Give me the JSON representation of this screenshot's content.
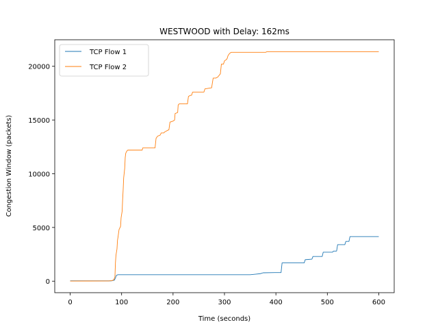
{
  "chart_data": {
    "type": "line",
    "title": "WESTWOOD with Delay: 162ms",
    "xlabel": "Time (seconds)",
    "ylabel": "Congestion Window (packets)",
    "xlim": [
      -30,
      630
    ],
    "ylim": [
      -1070,
      22470
    ],
    "xticks": [
      0,
      100,
      200,
      300,
      400,
      500,
      600
    ],
    "yticks": [
      0,
      5000,
      10000,
      15000,
      20000
    ],
    "grid": false,
    "legend_position": "upper-left",
    "series": [
      {
        "name": "TCP Flow 1",
        "color": "#1f77b4",
        "points": [
          [
            0,
            30
          ],
          [
            80,
            30
          ],
          [
            86,
            100
          ],
          [
            88,
            300
          ],
          [
            90,
            550
          ],
          [
            93,
            600
          ],
          [
            350,
            600
          ],
          [
            360,
            650
          ],
          [
            370,
            700
          ],
          [
            375,
            780
          ],
          [
            398,
            800
          ],
          [
            410,
            800
          ],
          [
            412,
            1700
          ],
          [
            455,
            1700
          ],
          [
            457,
            2000
          ],
          [
            470,
            2050
          ],
          [
            472,
            2300
          ],
          [
            490,
            2300
          ],
          [
            492,
            2700
          ],
          [
            510,
            2700
          ],
          [
            512,
            2800
          ],
          [
            518,
            2800
          ],
          [
            520,
            3400
          ],
          [
            534,
            3400
          ],
          [
            536,
            3700
          ],
          [
            542,
            3700
          ],
          [
            544,
            4150
          ],
          [
            600,
            4150
          ]
        ]
      },
      {
        "name": "TCP Flow 2",
        "color": "#ff7f0e",
        "points": [
          [
            0,
            10
          ],
          [
            75,
            20
          ],
          [
            82,
            60
          ],
          [
            85,
            150
          ],
          [
            87,
            400
          ],
          [
            88,
            1700
          ],
          [
            89,
            2400
          ],
          [
            91,
            3000
          ],
          [
            92,
            3800
          ],
          [
            93,
            4100
          ],
          [
            95,
            4800
          ],
          [
            97,
            5000
          ],
          [
            98,
            5100
          ],
          [
            99,
            5900
          ],
          [
            101,
            6500
          ],
          [
            102,
            7600
          ],
          [
            103,
            8500
          ],
          [
            104,
            9600
          ],
          [
            106,
            10500
          ],
          [
            107,
            11500
          ],
          [
            108,
            11900
          ],
          [
            110,
            12100
          ],
          [
            112,
            12200
          ],
          [
            140,
            12200
          ],
          [
            141,
            12400
          ],
          [
            165,
            12400
          ],
          [
            167,
            13300
          ],
          [
            170,
            13500
          ],
          [
            175,
            13600
          ],
          [
            177,
            13800
          ],
          [
            182,
            13800
          ],
          [
            184,
            13900
          ],
          [
            192,
            14100
          ],
          [
            194,
            14800
          ],
          [
            200,
            14900
          ],
          [
            203,
            15000
          ],
          [
            204,
            15600
          ],
          [
            209,
            15700
          ],
          [
            210,
            16400
          ],
          [
            212,
            16500
          ],
          [
            228,
            16500
          ],
          [
            230,
            17200
          ],
          [
            234,
            17300
          ],
          [
            236,
            17300
          ],
          [
            238,
            17600
          ],
          [
            260,
            17600
          ],
          [
            262,
            17900
          ],
          [
            275,
            18000
          ],
          [
            278,
            18900
          ],
          [
            283,
            18900
          ],
          [
            287,
            19000
          ],
          [
            292,
            19300
          ],
          [
            294,
            20200
          ],
          [
            298,
            20200
          ],
          [
            300,
            20500
          ],
          [
            303,
            20600
          ],
          [
            305,
            20700
          ],
          [
            307,
            21000
          ],
          [
            310,
            21200
          ],
          [
            313,
            21300
          ],
          [
            380,
            21300
          ],
          [
            382,
            21350
          ],
          [
            600,
            21350
          ]
        ]
      }
    ]
  }
}
